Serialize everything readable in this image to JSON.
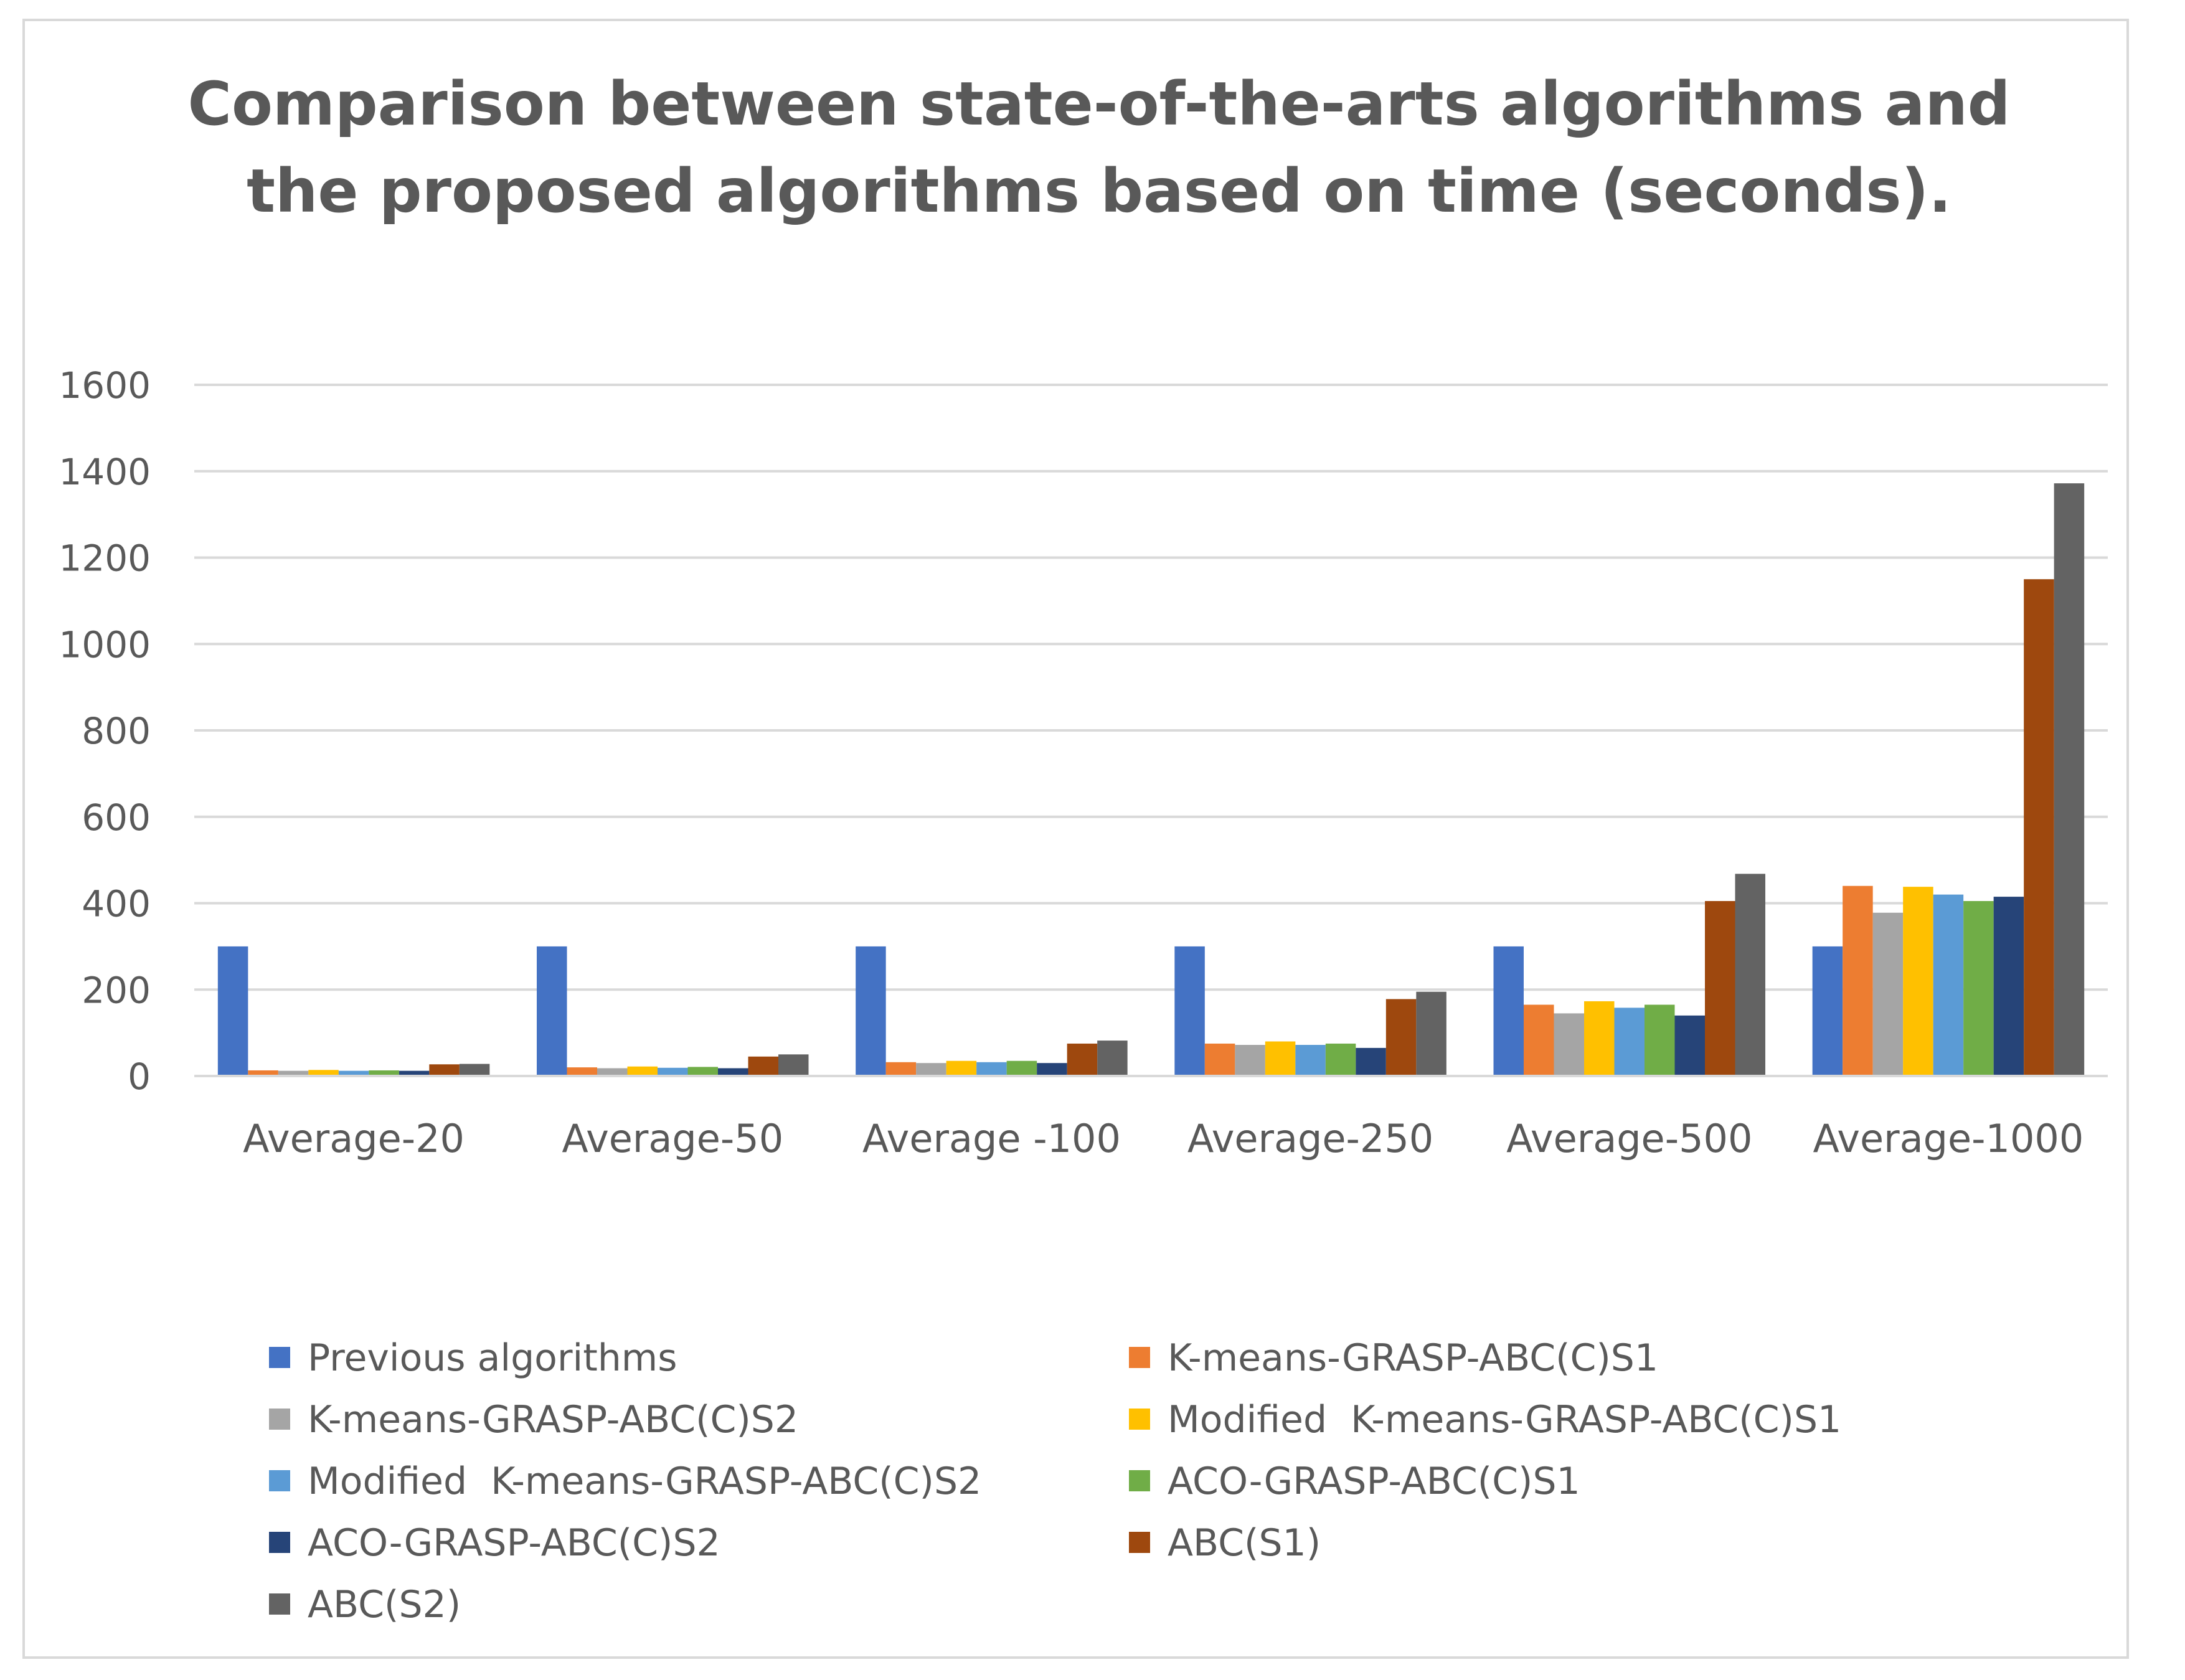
{
  "chart_data": {
    "type": "bar",
    "title_lines": [
      "Comparison between state-of-the-arts algorithms and",
      "the proposed algorithms based on time (seconds)."
    ],
    "xlabel": "",
    "ylabel": "",
    "ylim": [
      0,
      1600
    ],
    "yticks": [
      "0",
      "200",
      "400",
      "600",
      "800",
      "1000",
      "1200",
      "1400",
      "1600"
    ],
    "grid": true,
    "legend_position": "bottom",
    "categories": [
      "Average-20",
      "Average-50",
      "Average -100",
      "Average-250",
      "Average-500",
      "Average-1000"
    ],
    "series": [
      {
        "name": "Previous algorithms",
        "color": "#4472C4",
        "values": [
          300,
          300,
          300,
          300,
          300,
          300
        ]
      },
      {
        "name": "K-means-GRASP-ABC(C)S1",
        "color": "#ED7D31",
        "values": [
          13,
          20,
          32,
          75,
          165,
          440
        ]
      },
      {
        "name": "K-means-GRASP-ABC(C)S2",
        "color": "#A5A5A5",
        "values": [
          12,
          18,
          30,
          72,
          145,
          378
        ]
      },
      {
        "name": "Modified  K-means-GRASP-ABC(C)S1",
        "color": "#FFC000",
        "values": [
          14,
          22,
          35,
          80,
          173,
          438
        ]
      },
      {
        "name": "Modified  K-means-GRASP-ABC(C)S2",
        "color": "#5B9BD5",
        "values": [
          12,
          19,
          32,
          72,
          158,
          420
        ]
      },
      {
        "name": "ACO-GRASP-ABC(C)S1",
        "color": "#70AD47",
        "values": [
          13,
          21,
          35,
          75,
          165,
          405
        ]
      },
      {
        "name": "ACO-GRASP-ABC(C)S2",
        "color": "#264478",
        "values": [
          12,
          18,
          30,
          65,
          140,
          415
        ]
      },
      {
        "name": "ABC(S1)",
        "color": "#9E480E",
        "values": [
          27,
          45,
          75,
          178,
          405,
          1150
        ]
      },
      {
        "name": "ABC(S2)",
        "color": "#636363",
        "values": [
          28,
          50,
          82,
          195,
          468,
          1372
        ]
      }
    ]
  }
}
